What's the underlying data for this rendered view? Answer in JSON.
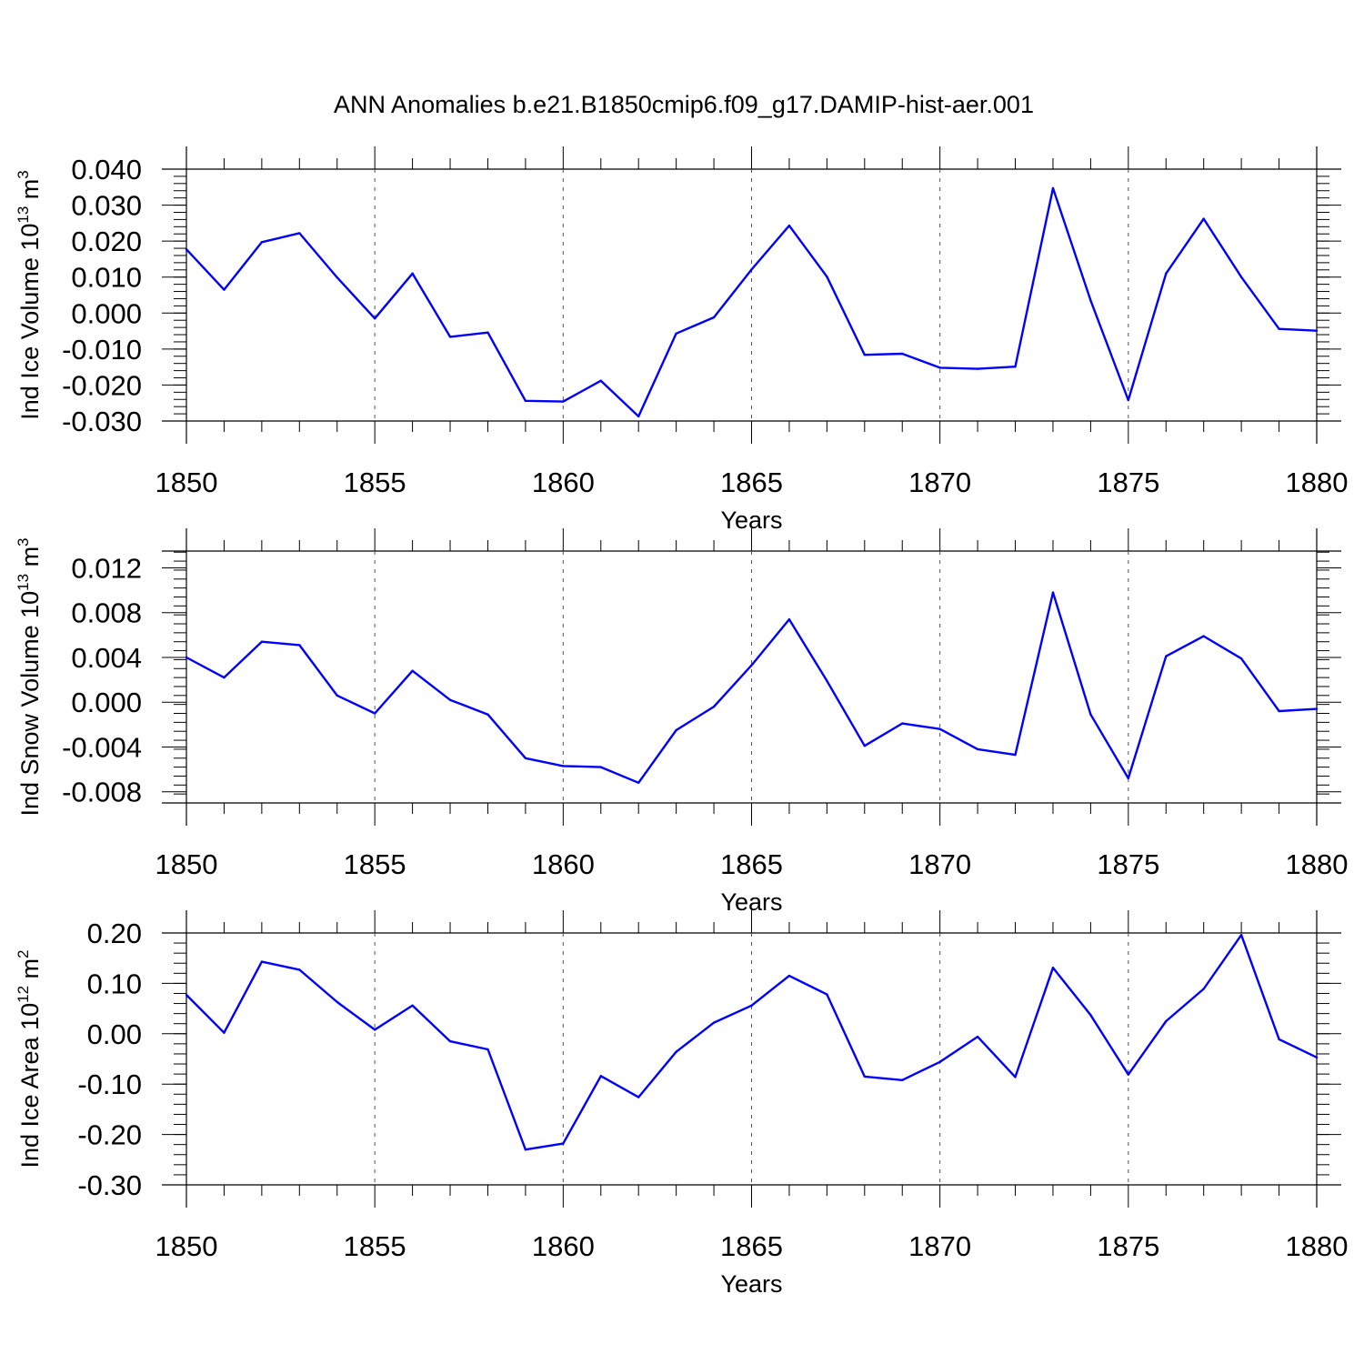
{
  "title": "ANN Anomalies b.e21.B1850cmip6.f09_g17.DAMIP-hist-aer.001",
  "colors": {
    "line": "#0000ff",
    "axis": "#000000",
    "grid": "#555555"
  },
  "chart_data": [
    {
      "type": "line",
      "xlabel": "Years",
      "ylabel": {
        "prefix": "Ind Ice Volume 10",
        "exp": "13",
        "unit": " m",
        "unit_exp": "3"
      },
      "xlim": [
        1850,
        1880
      ],
      "ylim": [
        -0.03,
        0.04
      ],
      "xticks": [
        "1850",
        "1855",
        "1860",
        "1865",
        "1870",
        "1875",
        "1880"
      ],
      "yticks": [
        "-0.030",
        "-0.020",
        "-0.010",
        "0.000",
        "0.010",
        "0.020",
        "0.030",
        "0.040"
      ],
      "grid": "x-dashed",
      "x": [
        1850,
        1851,
        1852,
        1853,
        1854,
        1855,
        1856,
        1857,
        1858,
        1859,
        1860,
        1861,
        1862,
        1863,
        1864,
        1865,
        1866,
        1867,
        1868,
        1869,
        1870,
        1871,
        1872,
        1873,
        1874,
        1875,
        1876,
        1877,
        1878,
        1879,
        1880
      ],
      "y": [
        0.0177,
        0.0065,
        0.0197,
        0.0222,
        0.0099,
        -0.0015,
        0.011,
        -0.0066,
        -0.0054,
        -0.0244,
        -0.0246,
        -0.0188,
        -0.0287,
        -0.0057,
        -0.0012,
        0.0121,
        0.0243,
        0.0101,
        -0.0116,
        -0.0113,
        -0.0152,
        -0.0155,
        -0.0149,
        0.0347,
        0.0035,
        -0.0242,
        0.011,
        0.0262,
        0.01,
        -0.0044,
        -0.0049
      ]
    },
    {
      "type": "line",
      "xlabel": "Years",
      "ylabel": {
        "prefix": "Ind Snow Volume 10",
        "exp": "13",
        "unit": " m",
        "unit_exp": "3"
      },
      "xlim": [
        1850,
        1880
      ],
      "ylim": [
        -0.009,
        0.0135
      ],
      "xticks": [
        "1850",
        "1855",
        "1860",
        "1865",
        "1870",
        "1875",
        "1880"
      ],
      "yticks": [
        "-0.008",
        "-0.004",
        "0.000",
        "0.004",
        "0.008",
        "0.012"
      ],
      "grid": "x-dashed",
      "x": [
        1850,
        1851,
        1852,
        1853,
        1854,
        1855,
        1856,
        1857,
        1858,
        1859,
        1860,
        1861,
        1862,
        1863,
        1864,
        1865,
        1866,
        1867,
        1868,
        1869,
        1870,
        1871,
        1872,
        1873,
        1874,
        1875,
        1876,
        1877,
        1878,
        1879,
        1880
      ],
      "y": [
        0.004,
        0.0022,
        0.0054,
        0.0051,
        0.0006,
        -0.001,
        0.0028,
        0.0002,
        -0.0011,
        -0.005,
        -0.0057,
        -0.0058,
        -0.0072,
        -0.0025,
        -0.0004,
        0.0033,
        0.0074,
        0.0019,
        -0.0039,
        -0.0019,
        -0.0024,
        -0.0042,
        -0.0047,
        0.0098,
        -0.0011,
        -0.0068,
        0.0041,
        0.0059,
        0.0039,
        -0.0008,
        -0.0006
      ]
    },
    {
      "type": "line",
      "xlabel": "Years",
      "ylabel": {
        "prefix": "Ind Ice Area 10",
        "exp": "12",
        "unit": " m",
        "unit_exp": "2"
      },
      "xlim": [
        1850,
        1880
      ],
      "ylim": [
        -0.3,
        0.2
      ],
      "xticks": [
        "1850",
        "1855",
        "1860",
        "1865",
        "1870",
        "1875",
        "1880"
      ],
      "yticks": [
        "-0.30",
        "-0.20",
        "-0.10",
        "0.00",
        "0.10",
        "0.20"
      ],
      "grid": "x-dashed",
      "x": [
        1850,
        1851,
        1852,
        1853,
        1854,
        1855,
        1856,
        1857,
        1858,
        1859,
        1860,
        1861,
        1862,
        1863,
        1864,
        1865,
        1866,
        1867,
        1868,
        1869,
        1870,
        1871,
        1872,
        1873,
        1874,
        1875,
        1876,
        1877,
        1878,
        1879,
        1880
      ],
      "y": [
        0.077,
        0.002,
        0.143,
        0.127,
        0.063,
        0.008,
        0.056,
        -0.015,
        -0.031,
        -0.23,
        -0.218,
        -0.084,
        -0.126,
        -0.036,
        0.022,
        0.056,
        0.115,
        0.078,
        -0.085,
        -0.092,
        -0.056,
        -0.006,
        -0.086,
        0.131,
        0.037,
        -0.081,
        0.025,
        0.089,
        0.196,
        -0.011,
        -0.047
      ]
    }
  ]
}
